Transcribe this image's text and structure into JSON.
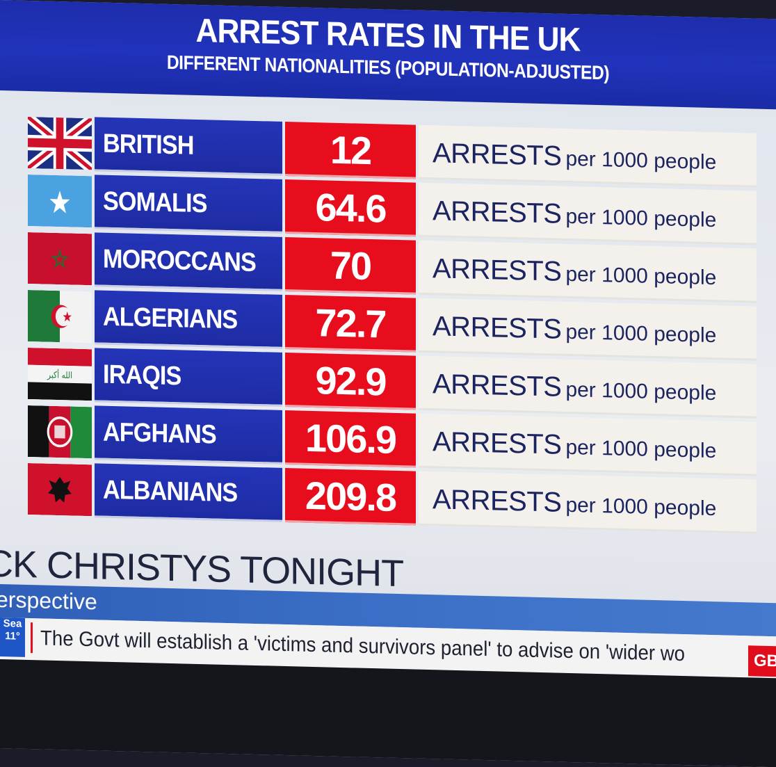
{
  "header": {
    "title": "ARREST RATES IN THE UK",
    "subtitle": "DIFFERENT NATIONALITIES (POPULATION-ADJUSTED)"
  },
  "chart_data": {
    "type": "table",
    "title": "ARREST RATES IN THE UK",
    "subtitle": "DIFFERENT NATIONALITIES (POPULATION-ADJUSTED)",
    "unit_main": "ARRESTS",
    "unit_sub": "per 1000 people",
    "rows": [
      {
        "name": "BRITISH",
        "value": "12",
        "flag": "uk-flag"
      },
      {
        "name": "SOMALIS",
        "value": "64.6",
        "flag": "somalia-flag"
      },
      {
        "name": "MOROCCANS",
        "value": "70",
        "flag": "morocco-flag"
      },
      {
        "name": "ALGERIANS",
        "value": "72.7",
        "flag": "algeria-flag"
      },
      {
        "name": "IRAQIS",
        "value": "92.9",
        "flag": "iraq-flag"
      },
      {
        "name": "AFGHANS",
        "value": "106.9",
        "flag": "afghanistan-flag"
      },
      {
        "name": "ALBANIANS",
        "value": "209.8",
        "flag": "albania-flag"
      }
    ]
  },
  "lower_third": {
    "show_title": "CK CHRISTYS TONIGHT",
    "strap": "erspective"
  },
  "ticker": {
    "weather_line1": "Sea",
    "weather_line2": "11°",
    "text": "The Govt will establish a 'victims and survivors panel' to advise on 'wider wo",
    "channel_badge": "GB"
  },
  "colors": {
    "header_blue": "#1d2ba8",
    "name_blue": "#2434b8",
    "value_red": "#e80d1d",
    "unit_bg": "#f4f1ec",
    "unit_text": "#1c2460"
  }
}
